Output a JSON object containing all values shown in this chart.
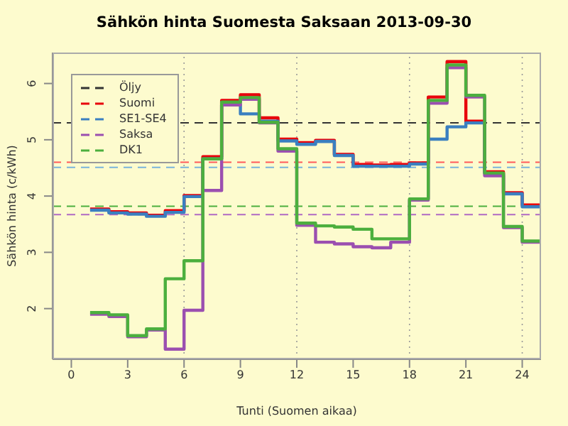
{
  "chart_data": {
    "type": "step",
    "title": "Sähkön hinta Suomesta Saksaan 2013-09-30",
    "xlabel": "Tunti (Suomen aikaa)",
    "ylabel": "Sähkön hinta (c/kWh)",
    "x": [
      1,
      2,
      3,
      4,
      5,
      6,
      7,
      8,
      9,
      10,
      11,
      12,
      13,
      14,
      15,
      16,
      17,
      18,
      19,
      20,
      21,
      22,
      23,
      24,
      25
    ],
    "series": [
      {
        "name": "Suomi",
        "color": "#e8000b",
        "values": [
          3.77,
          3.72,
          3.7,
          3.66,
          3.74,
          4.01,
          4.7,
          5.7,
          5.8,
          5.39,
          5.01,
          4.95,
          4.99,
          4.74,
          4.56,
          4.55,
          4.56,
          4.59,
          5.76,
          6.39,
          5.33,
          4.43,
          4.06,
          3.84,
          3.84
        ]
      },
      {
        "name": "SE1-SE4",
        "color": "#3a7fc0",
        "values": [
          3.75,
          3.7,
          3.68,
          3.64,
          3.71,
          3.99,
          4.66,
          5.62,
          5.46,
          5.33,
          4.98,
          4.92,
          4.97,
          4.72,
          4.53,
          4.53,
          4.53,
          4.57,
          5.01,
          5.23,
          5.3,
          4.4,
          4.04,
          3.81,
          3.81
        ]
      },
      {
        "name": "Saksa",
        "color": "#9b4fb0",
        "values": [
          1.9,
          1.86,
          1.5,
          1.62,
          1.28,
          1.97,
          4.1,
          5.62,
          5.72,
          5.3,
          4.8,
          3.48,
          3.18,
          3.15,
          3.1,
          3.08,
          3.18,
          3.93,
          5.65,
          6.28,
          5.76,
          4.36,
          3.44,
          3.18,
          3.18
        ]
      },
      {
        "name": "DK1",
        "color": "#4caf3e",
        "values": [
          1.93,
          1.89,
          1.52,
          1.64,
          2.53,
          2.85,
          4.66,
          5.67,
          5.75,
          5.31,
          4.84,
          3.52,
          3.47,
          3.45,
          3.41,
          3.24,
          3.24,
          3.95,
          5.7,
          6.33,
          5.79,
          4.41,
          3.46,
          3.2,
          3.2
        ]
      }
    ],
    "xlim": [
      -1,
      25
    ],
    "xticks": [
      0,
      3,
      6,
      9,
      12,
      15,
      18,
      21,
      24
    ],
    "ylim": [
      1.1,
      6.55
    ],
    "yticks": [
      2,
      3,
      4,
      5,
      6
    ],
    "ref_lines": [
      {
        "axis": "y",
        "value": 5.3,
        "label": "Öljy",
        "color": "#333333",
        "line_style": "dashed"
      },
      {
        "axis": "y",
        "value": 4.6,
        "color": "#ff5a5a",
        "line_style": "dashed"
      },
      {
        "axis": "y",
        "value": 4.51,
        "color": "#7ab4dc",
        "line_style": "dashed"
      },
      {
        "axis": "y",
        "value": 3.82,
        "color": "#4caf3e",
        "line_style": "dashed"
      },
      {
        "axis": "y",
        "value": 3.67,
        "color": "#b06ac4",
        "line_style": "dashed"
      },
      {
        "axis": "x",
        "value": 6,
        "color": "#999999",
        "line_style": "dotted"
      },
      {
        "axis": "x",
        "value": 12,
        "color": "#999999",
        "line_style": "dotted"
      },
      {
        "axis": "x",
        "value": 18,
        "color": "#999999",
        "line_style": "dotted"
      },
      {
        "axis": "x",
        "value": 24,
        "color": "#999999",
        "line_style": "dotted"
      }
    ],
    "legend": "top left"
  }
}
